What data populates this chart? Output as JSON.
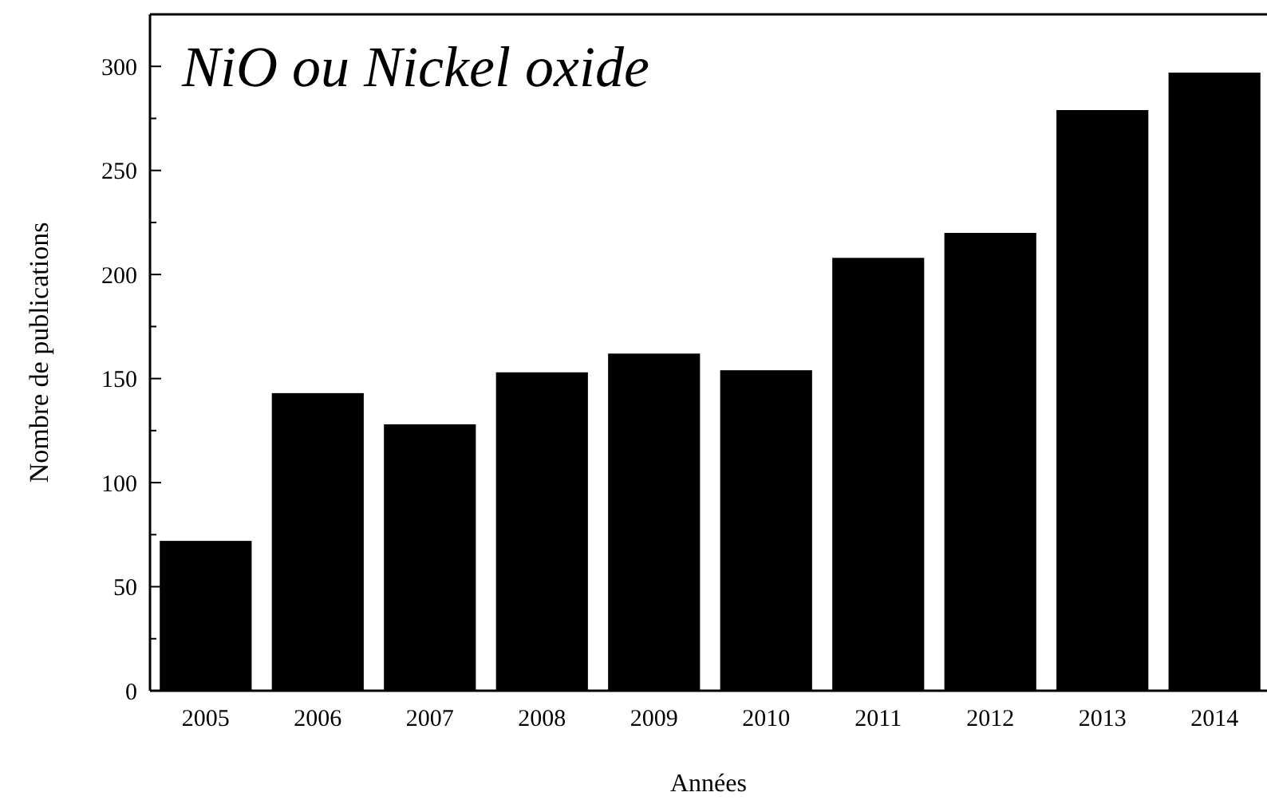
{
  "chart_data": {
    "type": "bar",
    "title": "NiO ou Nickel oxide",
    "xlabel": "Années",
    "ylabel": "Nombre de publications",
    "categories": [
      "2005",
      "2006",
      "2007",
      "2008",
      "2009",
      "2010",
      "2011",
      "2012",
      "2013",
      "2014"
    ],
    "values": [
      72,
      143,
      128,
      153,
      162,
      154,
      208,
      220,
      279,
      297
    ],
    "color": "#000000",
    "ylim": [
      0,
      325
    ],
    "yticks": [
      0,
      {
        "value": 25,
        "label": null
      },
      50,
      {
        "value": 75,
        "label": null
      },
      100,
      {
        "value": 125,
        "label": null
      },
      150,
      {
        "value": 175,
        "label": null
      },
      200,
      {
        "value": 225,
        "label": null
      },
      250,
      {
        "value": 275,
        "label": null
      },
      300
    ],
    "grid": false
  }
}
